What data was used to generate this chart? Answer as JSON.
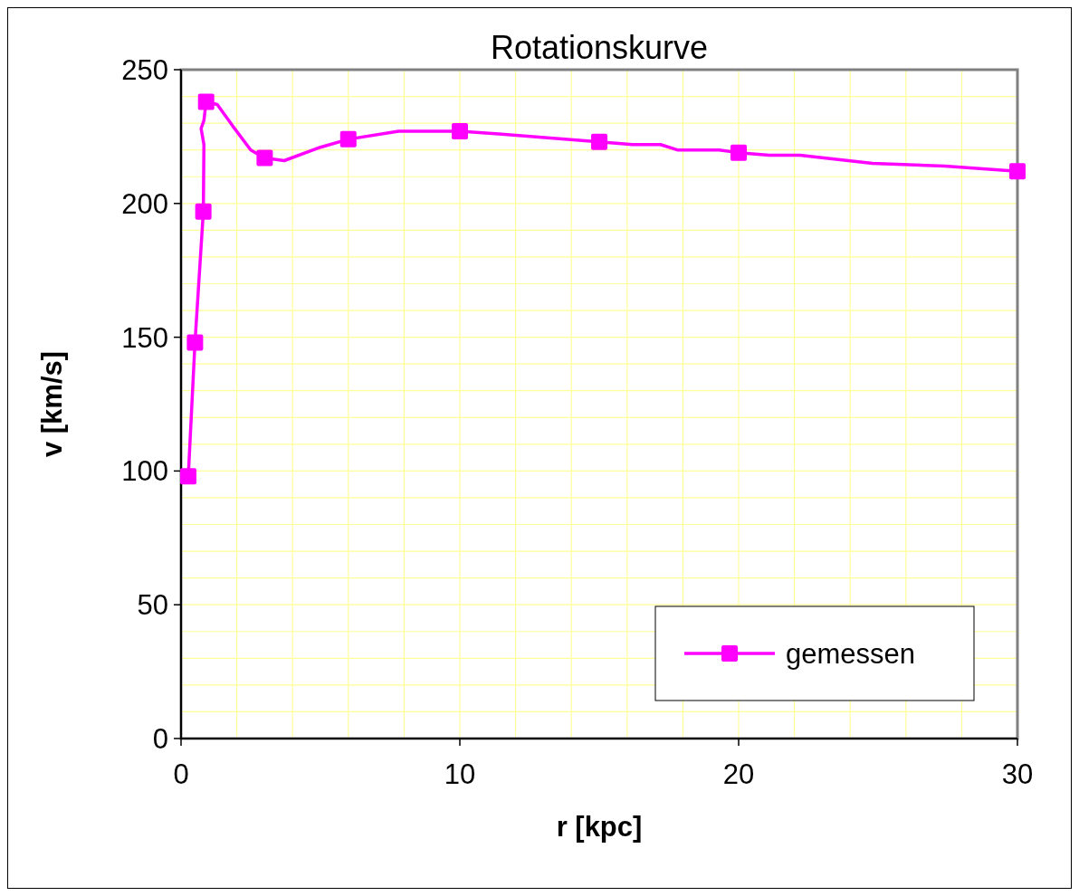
{
  "chart_data": {
    "type": "line",
    "title": "Rotationskurve",
    "xlabel": "r [kpc]",
    "ylabel": "v [km/s]",
    "xlim": [
      0,
      30
    ],
    "ylim": [
      0,
      250
    ],
    "xticks": [
      0,
      {
        "value": 2,
        "label": null
      },
      {
        "value": 4,
        "label": null
      },
      {
        "value": 6,
        "label": null
      },
      {
        "value": 8,
        "label": null
      },
      10,
      {
        "value": 12,
        "label": null
      },
      {
        "value": 14,
        "label": null
      },
      {
        "value": 16,
        "label": null
      },
      {
        "value": 18,
        "label": null
      },
      20,
      {
        "value": 22,
        "label": null
      },
      {
        "value": 24,
        "label": null
      },
      {
        "value": 26,
        "label": null
      },
      {
        "value": 28,
        "label": null
      },
      30
    ],
    "yticks": [
      0,
      {
        "value": 10,
        "label": null
      },
      {
        "value": 20,
        "label": null
      },
      {
        "value": 30,
        "label": null
      },
      {
        "value": 40,
        "label": null
      },
      50,
      {
        "value": 60,
        "label": null
      },
      {
        "value": 70,
        "label": null
      },
      {
        "value": 80,
        "label": null
      },
      {
        "value": 90,
        "label": null
      },
      100,
      {
        "value": 110,
        "label": null
      },
      {
        "value": 120,
        "label": null
      },
      {
        "value": 130,
        "label": null
      },
      {
        "value": 140,
        "label": null
      },
      150,
      {
        "value": 160,
        "label": null
      },
      {
        "value": 170,
        "label": null
      },
      {
        "value": 180,
        "label": null
      },
      {
        "value": 190,
        "label": null
      },
      200,
      {
        "value": 210,
        "label": null
      },
      {
        "value": 220,
        "label": null
      },
      {
        "value": 230,
        "label": null
      },
      {
        "value": 240,
        "label": null
      },
      250
    ],
    "grid": true,
    "legend": "bottom right",
    "series": [
      {
        "color": "#ff00ff",
        "marker": "none",
        "x": [
          0.26,
          0.5,
          0.8,
          0.82,
          0.72,
          0.82,
          0.9,
          1.3,
          1.85,
          2.5,
          3,
          3.7,
          5,
          6,
          7.8,
          10,
          11.4,
          15,
          16.2,
          17.2,
          17.8,
          19.3,
          20,
          21.1,
          22.2,
          24.8,
          27.4,
          30
        ],
        "values": [
          98,
          148,
          197,
          222,
          228,
          231,
          238,
          237,
          229,
          220,
          217,
          216,
          221,
          224,
          227,
          227,
          226,
          223,
          222,
          222,
          220,
          220,
          219,
          218,
          218,
          215,
          214,
          212
        ]
      },
      {
        "type": "scatter",
        "name": "gemessen",
        "color": "#ff00ff",
        "marker": "square",
        "x": [
          0.26,
          0.5,
          0.8,
          0.9,
          3,
          6,
          10,
          15,
          20,
          30
        ],
        "values": [
          98,
          148,
          197,
          238,
          217,
          224,
          227,
          223,
          219,
          212
        ]
      }
    ]
  }
}
